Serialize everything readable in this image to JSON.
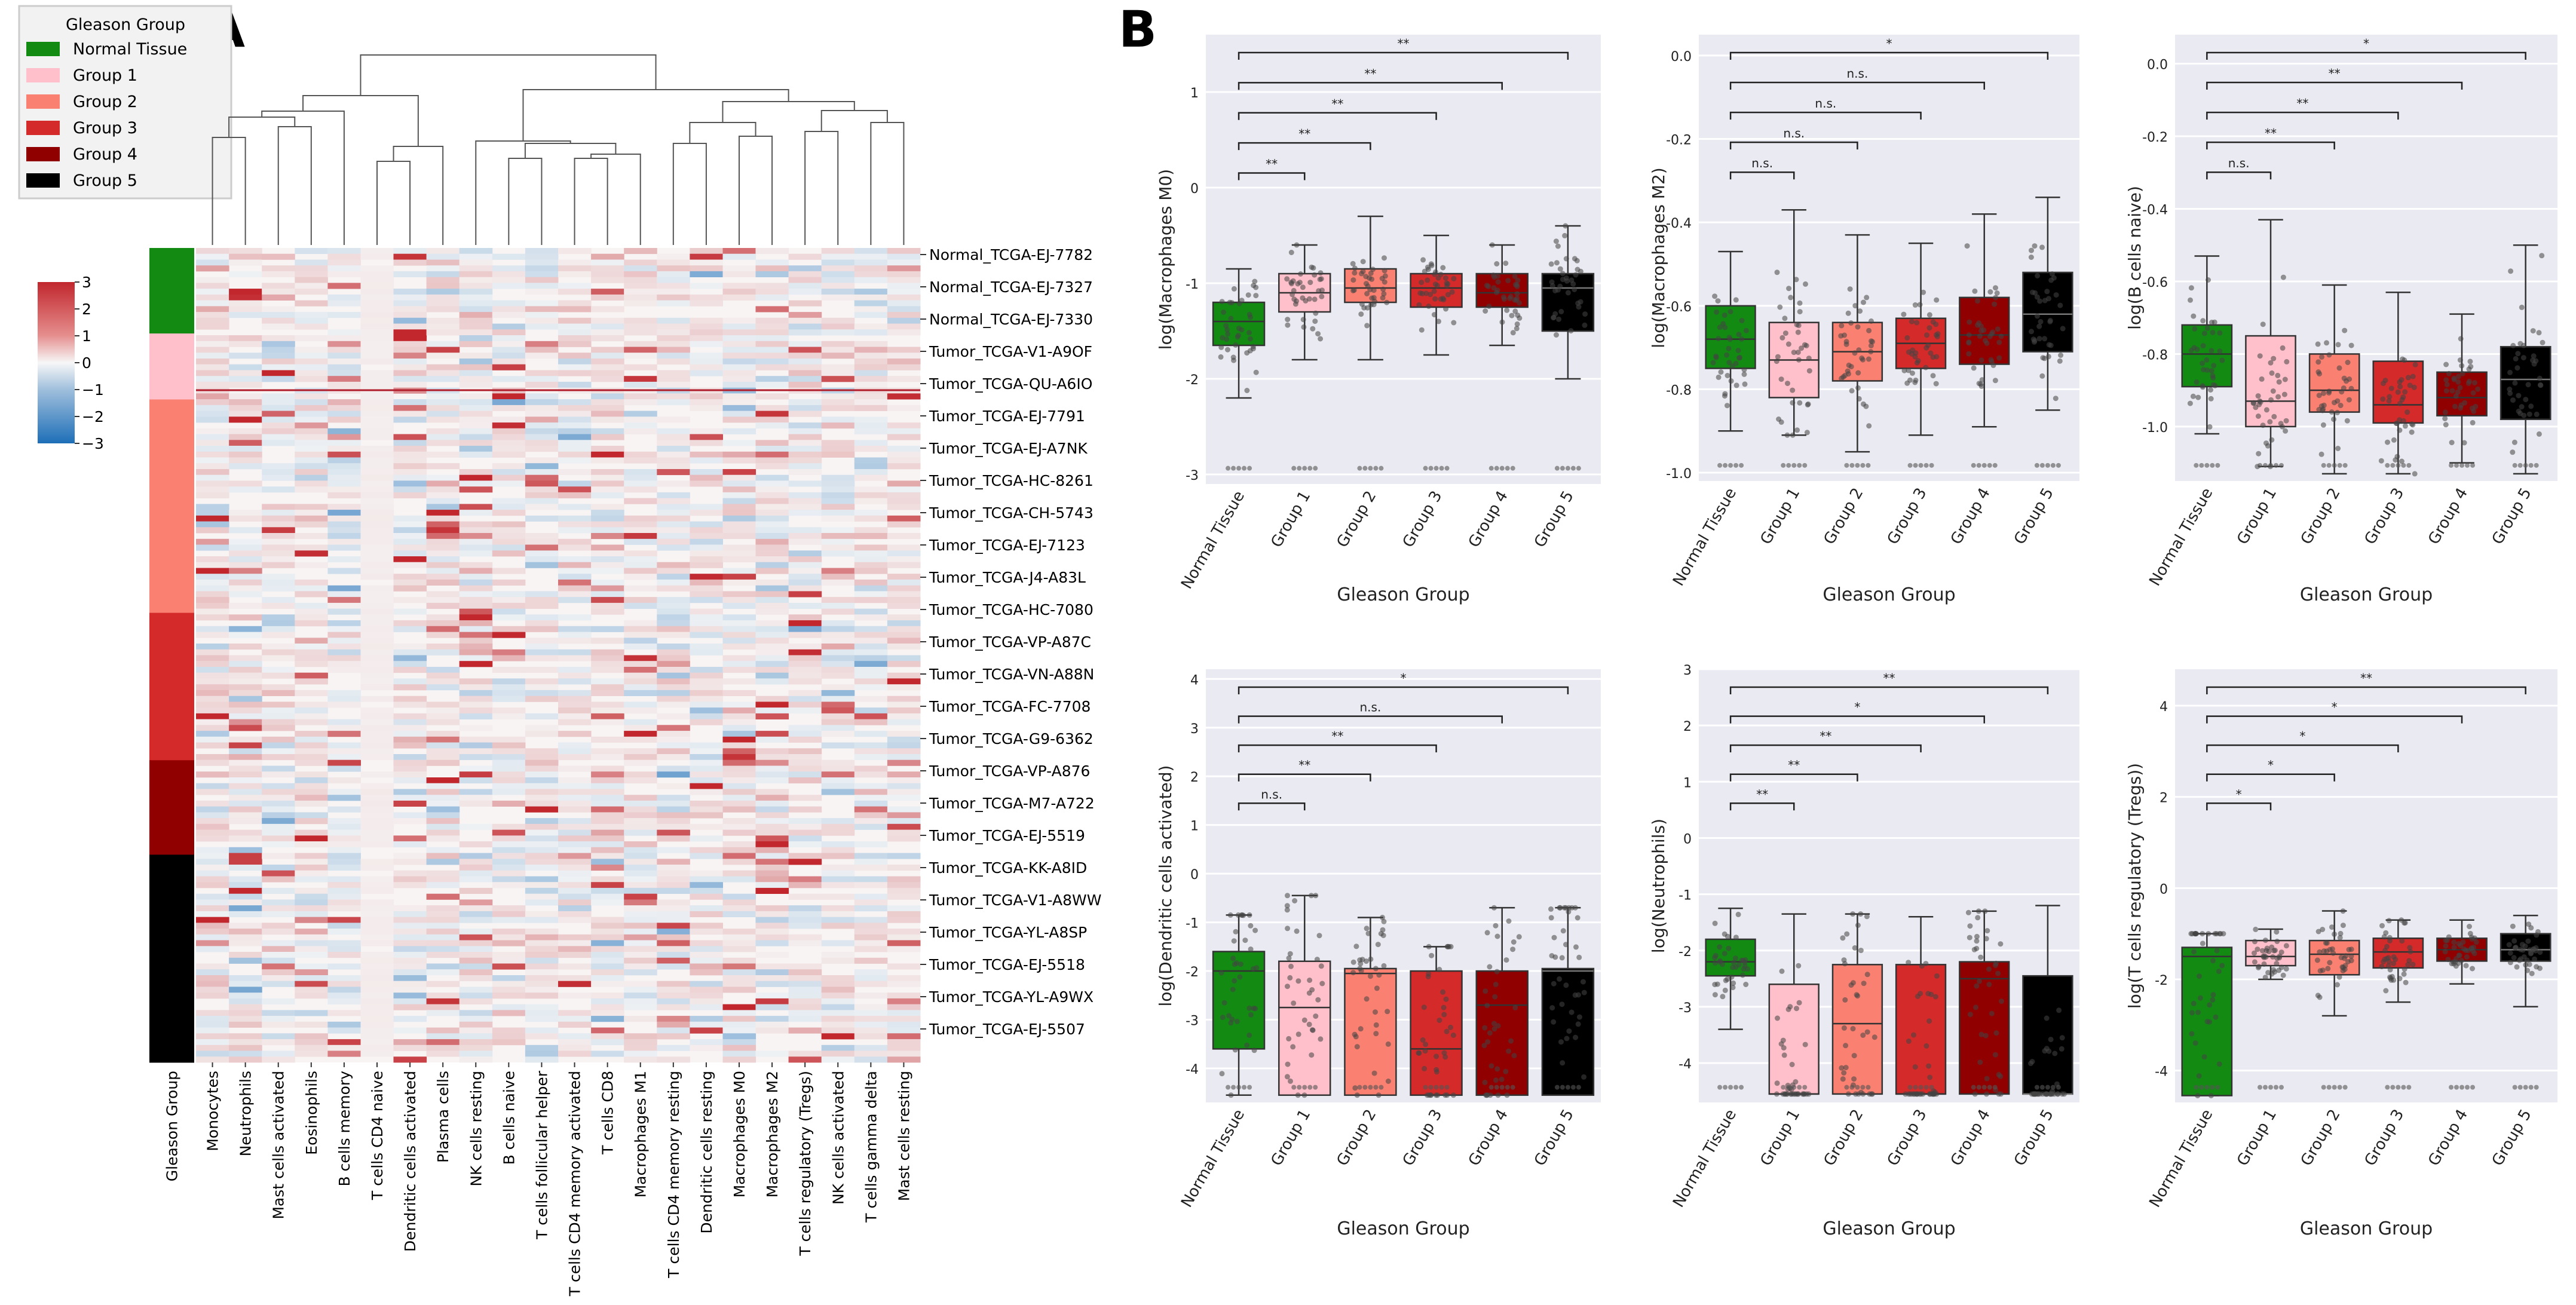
{
  "panel_a_label": "A",
  "panel_b_label": "B",
  "legend": {
    "title": "Gleason Group",
    "items": [
      {
        "label": "Normal Tissue",
        "color": "#138b13"
      },
      {
        "label": "Group 1",
        "color": "#ffc0cb"
      },
      {
        "label": "Group 2",
        "color": "#fa8072"
      },
      {
        "label": "Group 3",
        "color": "#d42a2a"
      },
      {
        "label": "Group 4",
        "color": "#900000"
      },
      {
        "label": "Group 5",
        "color": "#000000"
      }
    ]
  },
  "colorbar": {
    "ticks": [
      "3",
      "2",
      "1",
      "0",
      "−1",
      "−2",
      "−3"
    ],
    "low_color": "#1e6fb8",
    "mid_color": "#f7f7f7",
    "high_color": "#c1272d"
  },
  "chart_data": [
    {
      "type": "heatmap",
      "columns": [
        "Monocytes",
        "Neutrophils",
        "Mast cells activated",
        "Eosinophils",
        "B cells memory",
        "T cells CD4 naive",
        "Dendritic cells activated",
        "Plasma cells",
        "NK cells resting",
        "B cells naive",
        "T cells follicular helper",
        "T cells CD4 memory activated",
        "T cells CD8",
        "Macrophages M1",
        "T cells CD4 memory resting",
        "Dendritic cells resting",
        "Macrophages M0",
        "Macrophages M2",
        "T cells regulatory (Tregs)",
        "NK cells activated",
        "T cells gamma delta",
        "Mast cells resting"
      ],
      "annotation_column_label": "Gleason Group",
      "group_annotation": [
        {
          "group": "Normal Tissue",
          "share": 0.105
        },
        {
          "group": "Group 1",
          "share": 0.081
        },
        {
          "group": "Group 2",
          "share": 0.262
        },
        {
          "group": "Group 3",
          "share": 0.181
        },
        {
          "group": "Group 4",
          "share": 0.116
        },
        {
          "group": "Group 5",
          "share": 0.255
        }
      ],
      "row_labels": [
        "Normal_TCGA-EJ-7782",
        "Normal_TCGA-EJ-7327",
        "Normal_TCGA-EJ-7330",
        "Tumor_TCGA-V1-A9OF",
        "Tumor_TCGA-QU-A6IO",
        "Tumor_TCGA-EJ-7791",
        "Tumor_TCGA-EJ-A7NK",
        "Tumor_TCGA-HC-8261",
        "Tumor_TCGA-CH-5743",
        "Tumor_TCGA-EJ-7123",
        "Tumor_TCGA-J4-A83L",
        "Tumor_TCGA-HC-7080",
        "Tumor_TCGA-VP-A87C",
        "Tumor_TCGA-VN-A88N",
        "Tumor_TCGA-FC-7708",
        "Tumor_TCGA-G9-6362",
        "Tumor_TCGA-VP-A876",
        "Tumor_TCGA-M7-A722",
        "Tumor_TCGA-EJ-5519",
        "Tumor_TCGA-KK-A8ID",
        "Tumor_TCGA-V1-A8WW",
        "Tumor_TCGA-YL-A8SP",
        "Tumor_TCGA-EJ-5518",
        "Tumor_TCGA-YL-A9WX",
        "Tumor_TCGA-EJ-5507"
      ],
      "value_range": [
        -3,
        3
      ],
      "dendrogram": "column clustering shown above heatmap"
    },
    {
      "type": "box",
      "ylabel": "log(Macrophages M0)",
      "xlabel": "Gleason Group",
      "categories": [
        "Normal Tissue",
        "Group 1",
        "Group 2",
        "Group 3",
        "Group 4",
        "Group 5"
      ],
      "ylim": [
        -3.1,
        1.6
      ],
      "yticks": [
        "-3",
        "-2",
        "-1",
        "0",
        "1"
      ],
      "boxes": [
        {
          "q1": -1.65,
          "median": -1.4,
          "q3": -1.2,
          "wmin": -2.2,
          "wmax": -0.85
        },
        {
          "q1": -1.3,
          "median": -1.1,
          "q3": -0.9,
          "wmin": -1.8,
          "wmax": -0.6
        },
        {
          "q1": -1.2,
          "median": -1.05,
          "q3": -0.85,
          "wmin": -1.8,
          "wmax": -0.3
        },
        {
          "q1": -1.25,
          "median": -1.05,
          "q3": -0.9,
          "wmin": -1.75,
          "wmax": -0.5
        },
        {
          "q1": -1.25,
          "median": -1.1,
          "q3": -0.9,
          "wmin": -1.65,
          "wmax": -0.6
        },
        {
          "q1": -1.5,
          "median": -1.05,
          "q3": -0.9,
          "wmin": -2.0,
          "wmax": -0.4
        }
      ],
      "brackets": [
        {
          "to": 1,
          "label": "**"
        },
        {
          "to": 2,
          "label": "**"
        },
        {
          "to": 3,
          "label": "**"
        },
        {
          "to": 4,
          "label": "**"
        },
        {
          "to": 5,
          "label": "**"
        }
      ]
    },
    {
      "type": "box",
      "ylabel": "log(Macrophages M2)",
      "xlabel": "Gleason Group",
      "categories": [
        "Normal Tissue",
        "Group 1",
        "Group 2",
        "Group 3",
        "Group 4",
        "Group 5"
      ],
      "ylim": [
        -1.02,
        0.05
      ],
      "yticks": [
        "-1.0",
        "-0.8",
        "-0.6",
        "-0.4",
        "-0.2",
        "0.0"
      ],
      "boxes": [
        {
          "q1": -0.75,
          "median": -0.68,
          "q3": -0.6,
          "wmin": -0.9,
          "wmax": -0.47
        },
        {
          "q1": -0.82,
          "median": -0.73,
          "q3": -0.64,
          "wmin": -0.91,
          "wmax": -0.37
        },
        {
          "q1": -0.78,
          "median": -0.71,
          "q3": -0.64,
          "wmin": -0.95,
          "wmax": -0.43
        },
        {
          "q1": -0.75,
          "median": -0.69,
          "q3": -0.63,
          "wmin": -0.91,
          "wmax": -0.45
        },
        {
          "q1": -0.74,
          "median": -0.67,
          "q3": -0.58,
          "wmin": -0.89,
          "wmax": -0.38
        },
        {
          "q1": -0.71,
          "median": -0.62,
          "q3": -0.52,
          "wmin": -0.85,
          "wmax": -0.34
        }
      ],
      "brackets": [
        {
          "to": 1,
          "label": "n.s."
        },
        {
          "to": 2,
          "label": "n.s."
        },
        {
          "to": 3,
          "label": "n.s."
        },
        {
          "to": 4,
          "label": "n.s."
        },
        {
          "to": 5,
          "label": "*"
        }
      ]
    },
    {
      "type": "box",
      "ylabel": "log(B cells naive)",
      "xlabel": "Gleason Group",
      "categories": [
        "Normal Tissue",
        "Group 1",
        "Group 2",
        "Group 3",
        "Group 4",
        "Group 5"
      ],
      "ylim": [
        -1.15,
        0.08
      ],
      "yticks": [
        "-1.0",
        "-0.8",
        "-0.6",
        "-0.4",
        "-0.2",
        "0.0"
      ],
      "boxes": [
        {
          "q1": -0.89,
          "median": -0.8,
          "q3": -0.72,
          "wmin": -1.02,
          "wmax": -0.53
        },
        {
          "q1": -1.0,
          "median": -0.93,
          "q3": -0.75,
          "wmin": -1.11,
          "wmax": -0.43
        },
        {
          "q1": -0.96,
          "median": -0.9,
          "q3": -0.8,
          "wmin": -1.13,
          "wmax": -0.61
        },
        {
          "q1": -0.99,
          "median": -0.94,
          "q3": -0.82,
          "wmin": -1.13,
          "wmax": -0.63
        },
        {
          "q1": -0.97,
          "median": -0.92,
          "q3": -0.85,
          "wmin": -1.1,
          "wmax": -0.69
        },
        {
          "q1": -0.98,
          "median": -0.87,
          "q3": -0.78,
          "wmin": -1.13,
          "wmax": -0.5
        }
      ],
      "brackets": [
        {
          "to": 1,
          "label": "n.s."
        },
        {
          "to": 2,
          "label": "**"
        },
        {
          "to": 3,
          "label": "**"
        },
        {
          "to": 4,
          "label": "**"
        },
        {
          "to": 5,
          "label": "*"
        }
      ]
    },
    {
      "type": "box",
      "ylabel": "log(Dendritic cells activated)",
      "xlabel": "Gleason Group",
      "categories": [
        "Normal Tissue",
        "Group 1",
        "Group 2",
        "Group 3",
        "Group 4",
        "Group 5"
      ],
      "ylim": [
        -4.7,
        4.2
      ],
      "yticks": [
        "-4",
        "-3",
        "-2",
        "-1",
        "0",
        "1",
        "2",
        "3",
        "4"
      ],
      "boxes": [
        {
          "q1": -3.6,
          "median": -2.0,
          "q3": -1.6,
          "wmin": -4.55,
          "wmax": -0.85
        },
        {
          "q1": -4.55,
          "median": -2.75,
          "q3": -1.8,
          "wmin": -4.55,
          "wmax": -0.45
        },
        {
          "q1": -4.55,
          "median": -2.05,
          "q3": -1.95,
          "wmin": -4.55,
          "wmax": -0.9
        },
        {
          "q1": -4.55,
          "median": -3.6,
          "q3": -2.0,
          "wmin": -4.55,
          "wmax": -1.5
        },
        {
          "q1": -4.55,
          "median": -2.7,
          "q3": -2.0,
          "wmin": -4.55,
          "wmax": -0.7
        },
        {
          "q1": -4.55,
          "median": -2.0,
          "q3": -1.95,
          "wmin": -4.55,
          "wmax": -0.7
        }
      ],
      "brackets": [
        {
          "to": 1,
          "label": "n.s."
        },
        {
          "to": 2,
          "label": "**"
        },
        {
          "to": 3,
          "label": "**"
        },
        {
          "to": 4,
          "label": "n.s."
        },
        {
          "to": 5,
          "label": "*"
        }
      ]
    },
    {
      "type": "box",
      "ylabel": "log(Neutrophils)",
      "xlabel": "Gleason Group",
      "categories": [
        "Normal Tissue",
        "Group 1",
        "Group 2",
        "Group 3",
        "Group 4",
        "Group 5"
      ],
      "ylim": [
        -4.7,
        3.0
      ],
      "yticks": [
        "-4",
        "-3",
        "-2",
        "-1",
        "0",
        "1",
        "2",
        "3"
      ],
      "boxes": [
        {
          "q1": -2.45,
          "median": -2.2,
          "q3": -1.8,
          "wmin": -3.4,
          "wmax": -1.25
        },
        {
          "q1": -4.55,
          "median": -4.55,
          "q3": -2.6,
          "wmin": -4.55,
          "wmax": -1.35
        },
        {
          "q1": -4.55,
          "median": -3.3,
          "q3": -2.25,
          "wmin": -4.55,
          "wmax": -1.35
        },
        {
          "q1": -4.55,
          "median": -4.55,
          "q3": -2.25,
          "wmin": -4.55,
          "wmax": -1.4
        },
        {
          "q1": -4.55,
          "median": -2.5,
          "q3": -2.2,
          "wmin": -4.55,
          "wmax": -1.3
        },
        {
          "q1": -4.55,
          "median": -4.55,
          "q3": -2.45,
          "wmin": -4.55,
          "wmax": -1.2
        }
      ],
      "brackets": [
        {
          "to": 1,
          "label": "**"
        },
        {
          "to": 2,
          "label": "**"
        },
        {
          "to": 3,
          "label": "**"
        },
        {
          "to": 4,
          "label": "*"
        },
        {
          "to": 5,
          "label": "**"
        }
      ]
    },
    {
      "type": "box",
      "ylabel": "log(T cells regulatory (Tregs))",
      "xlabel": "Gleason Group",
      "categories": [
        "Normal Tissue",
        "Group 1",
        "Group 2",
        "Group 3",
        "Group 4",
        "Group 5"
      ],
      "ylim": [
        -4.7,
        4.8
      ],
      "yticks": [
        "-4",
        "-2",
        "0",
        "2",
        "4"
      ],
      "boxes": [
        {
          "q1": -4.55,
          "median": -1.5,
          "q3": -1.3,
          "wmin": -4.55,
          "wmax": -1.0
        },
        {
          "q1": -1.7,
          "median": -1.5,
          "q3": -1.15,
          "wmin": -2.0,
          "wmax": -0.9
        },
        {
          "q1": -1.9,
          "median": -1.45,
          "q3": -1.15,
          "wmin": -2.8,
          "wmax": -0.5
        },
        {
          "q1": -1.75,
          "median": -1.4,
          "q3": -1.1,
          "wmin": -2.5,
          "wmax": -0.7
        },
        {
          "q1": -1.6,
          "median": -1.35,
          "q3": -1.1,
          "wmin": -2.1,
          "wmax": -0.7
        },
        {
          "q1": -1.6,
          "median": -1.35,
          "q3": -1.0,
          "wmin": -2.6,
          "wmax": -0.6
        }
      ],
      "brackets": [
        {
          "to": 1,
          "label": "*"
        },
        {
          "to": 2,
          "label": "*"
        },
        {
          "to": 3,
          "label": "*"
        },
        {
          "to": 4,
          "label": "*"
        },
        {
          "to": 5,
          "label": "**"
        }
      ]
    }
  ]
}
